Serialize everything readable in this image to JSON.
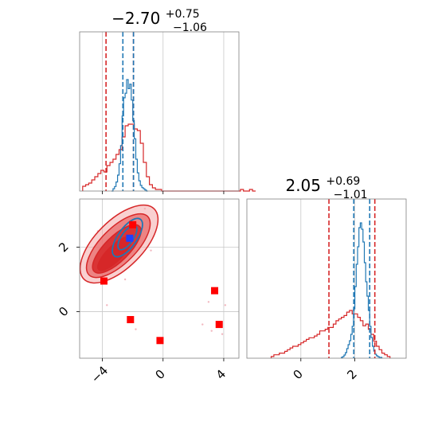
{
  "chart_data": {
    "type": "corner",
    "colors": {
      "red": "#d62728",
      "blue": "#1f77b4",
      "red_fill_dark": "#d62728",
      "red_fill_mid": "#e8696a",
      "red_fill_light": "#f4a9a9",
      "grid": "#c8c8c8",
      "frame": "#808080",
      "marker_blue": "#1f3fff",
      "marker_red": "#ff0000"
    },
    "parameters": [
      {
        "median": "−2.70",
        "plus": "+0.75",
        "minus": "−1.06"
      },
      {
        "median": "2.05",
        "plus": "+0.69",
        "minus": "−1.01"
      }
    ],
    "panel_x": {
      "xlim": [
        -5.5,
        5.0
      ],
      "ticks": [
        -4,
        0,
        4
      ],
      "tick_labels": [
        "−4",
        "0",
        "4"
      ],
      "red_quantiles": [
        -3.76,
        -1.95
      ],
      "blue_quantiles": [
        -2.65,
        -1.95
      ],
      "red_hist": {
        "x0": -5.3,
        "dx": 0.2,
        "counts": [
          3,
          4,
          5,
          7,
          9,
          11,
          13,
          12,
          16,
          18,
          20,
          23,
          26,
          34,
          41,
          42,
          42,
          39,
          38,
          30,
          18,
          9,
          4,
          2,
          1,
          1,
          0,
          0,
          0,
          0,
          0,
          0,
          0,
          0,
          0,
          0,
          0,
          0,
          0,
          0,
          0,
          0,
          0,
          0,
          0,
          0,
          0,
          0,
          0,
          0,
          0,
          0,
          1,
          0,
          0,
          1,
          0
        ]
      },
      "blue_hist": {
        "x0": -3.4,
        "dx": 0.1,
        "counts": [
          0,
          2,
          4,
          8,
          14,
          24,
          40,
          66,
          82,
          86,
          98,
          90,
          94,
          80,
          62,
          46,
          28,
          16,
          9,
          5,
          3,
          2,
          1,
          0
        ]
      }
    },
    "panel_y": {
      "xlim": [
        -2.0,
        3.9
      ],
      "ticks": [
        0,
        2
      ],
      "tick_labels": [
        "0",
        "2"
      ],
      "red_quantiles": [
        1.04,
        2.74
      ],
      "blue_quantiles": [
        1.96,
        2.55
      ],
      "red_hist": {
        "x0": -1.1,
        "dx": 0.1,
        "counts": [
          1,
          2,
          2,
          3,
          3,
          4,
          5,
          6,
          7,
          7,
          8,
          9,
          10,
          11,
          12,
          12,
          13,
          14,
          16,
          16,
          17,
          18,
          18,
          20,
          22,
          23,
          24,
          25,
          27,
          28,
          26,
          26,
          24,
          22,
          19,
          20,
          17,
          14,
          10,
          7,
          5,
          3,
          2,
          1
        ]
      },
      "blue_hist": {
        "x0": 1.5,
        "dx": 0.05,
        "counts": [
          1,
          2,
          4,
          7,
          12,
          17,
          22,
          30,
          40,
          62,
          90,
          118,
          140,
          164,
          170,
          162,
          146,
          120,
          96,
          78,
          60,
          40,
          26,
          15,
          9,
          5,
          3,
          2,
          1,
          1
        ]
      }
    },
    "panel_2d": {
      "xlim": [
        -5.5,
        5.0
      ],
      "ylim": [
        -1.45,
        3.5
      ],
      "x_ticks": [
        -4,
        0,
        4
      ],
      "x_tick_labels": [
        "−4",
        "0",
        "4"
      ],
      "y_ticks": [
        0,
        2
      ],
      "y_tick_labels": [
        "0",
        "2"
      ],
      "red_contours": [
        {
          "cx": -2.9,
          "cy": 2.1,
          "rx": 2.1,
          "ry": 1.0,
          "angle": 45
        },
        {
          "cx": -2.95,
          "cy": 2.05,
          "rx": 1.75,
          "ry": 0.75,
          "angle": 45
        },
        {
          "cx": -3.05,
          "cy": 1.95,
          "rx": 1.35,
          "ry": 0.52,
          "angle": 45
        },
        {
          "cx": -3.2,
          "cy": 1.8,
          "rx": 0.95,
          "ry": 0.32,
          "angle": 45
        }
      ],
      "blue_contours": [
        {
          "cx": -2.35,
          "cy": 2.3,
          "rx": 0.95,
          "ry": 0.4,
          "angle": 55
        },
        {
          "cx": -2.35,
          "cy": 2.3,
          "rx": 0.6,
          "ry": 0.25,
          "angle": 55
        }
      ],
      "blue_markers": [
        {
          "x": -2.2,
          "y": 2.28
        }
      ],
      "red_markers": [
        {
          "x": -3.9,
          "y": 0.95
        },
        {
          "x": -2.0,
          "y": 2.7
        },
        {
          "x": -2.15,
          "y": -0.25
        },
        {
          "x": -0.2,
          "y": -0.9
        },
        {
          "x": 3.4,
          "y": 0.65
        },
        {
          "x": 3.7,
          "y": -0.4
        }
      ],
      "scatter_points": [
        {
          "x": 3.2,
          "y": -0.6
        },
        {
          "x": 3.9,
          "y": -0.7
        },
        {
          "x": 3.0,
          "y": 0.3
        },
        {
          "x": 4.1,
          "y": 0.2
        },
        {
          "x": -1.8,
          "y": -0.55
        },
        {
          "x": -4.6,
          "y": 1.5
        },
        {
          "x": -4.3,
          "y": 2.5
        },
        {
          "x": -1.2,
          "y": 3.2
        },
        {
          "x": -0.8,
          "y": 1.9
        },
        {
          "x": -2.5,
          "y": 1.0
        },
        {
          "x": -3.7,
          "y": 0.2
        },
        {
          "x": 2.6,
          "y": -0.4
        }
      ]
    }
  }
}
